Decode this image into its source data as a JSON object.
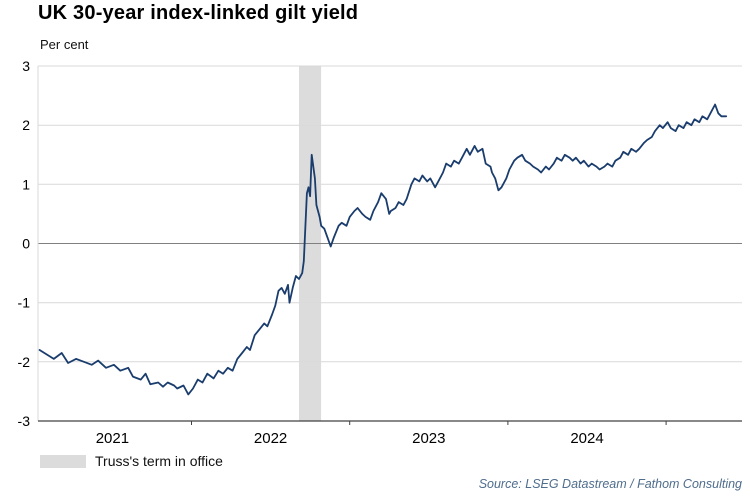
{
  "title": "UK 30-year index-linked gilt yield",
  "subtitle": "Per cent",
  "source": "Source: LSEG Datastream / Fathom Consulting",
  "colors": {
    "line": "#1a3d6d",
    "band": "#dcdcdc",
    "grid": "#d9d9d9",
    "zero_line": "#808080",
    "axis": "#404040",
    "text": "#000000",
    "source_text": "#4f6d8c"
  },
  "chart_data": {
    "type": "line",
    "title": "UK 30-year index-linked gilt yield",
    "ylabel": "Per cent",
    "xlabel": "",
    "ylim": [
      -3,
      3
    ],
    "yticks": [
      3,
      2,
      1,
      0,
      -1,
      -2,
      -3
    ],
    "xlim": [
      2021.03,
      2025.48
    ],
    "xticks": [
      {
        "label": "2021",
        "x": 2021.5
      },
      {
        "label": "2022",
        "x": 2022.5
      },
      {
        "label": "2023",
        "x": 2023.5
      },
      {
        "label": "2024",
        "x": 2024.5
      }
    ],
    "xtick_marks": [
      2022,
      2023,
      2024,
      2025
    ],
    "grid": "horizontal",
    "legend_position": "bottom-left",
    "band": {
      "label": "Truss's term in office",
      "x_start": 2022.68,
      "x_end": 2022.82
    },
    "series": [
      {
        "name": "UK 30-year index-linked gilt yield",
        "x": [
          2021.04,
          2021.13,
          2021.18,
          2021.22,
          2021.27,
          2021.32,
          2021.37,
          2021.41,
          2021.46,
          2021.51,
          2021.55,
          2021.6,
          2021.63,
          2021.68,
          2021.71,
          2021.74,
          2021.79,
          2021.82,
          2021.85,
          2021.89,
          2021.91,
          2021.95,
          2021.98,
          2022.01,
          2022.04,
          2022.07,
          2022.1,
          2022.14,
          2022.17,
          2022.2,
          2022.23,
          2022.26,
          2022.29,
          2022.32,
          2022.35,
          2022.37,
          2022.4,
          2022.43,
          2022.46,
          2022.48,
          2022.51,
          2022.53,
          2022.55,
          2022.57,
          2022.59,
          2022.61,
          2022.62,
          2022.64,
          2022.66,
          2022.68,
          2022.7,
          2022.71,
          2022.73,
          2022.74,
          2022.75,
          2022.76,
          2022.78,
          2022.79,
          2022.81,
          2022.82,
          2022.84,
          2022.86,
          2022.88,
          2022.9,
          2022.93,
          2022.95,
          2022.98,
          2023.0,
          2023.03,
          2023.05,
          2023.08,
          2023.1,
          2023.13,
          2023.15,
          2023.18,
          2023.2,
          2023.23,
          2023.25,
          2023.26,
          2023.29,
          2023.31,
          2023.34,
          2023.36,
          2023.39,
          2023.41,
          2023.44,
          2023.46,
          2023.49,
          2023.51,
          2023.54,
          2023.56,
          2023.59,
          2023.61,
          2023.64,
          2023.66,
          2023.69,
          2023.71,
          2023.74,
          2023.76,
          2023.79,
          2023.81,
          2023.84,
          2023.86,
          2023.89,
          2023.9,
          2023.92,
          2023.94,
          2023.96,
          2023.99,
          2024.01,
          2024.04,
          2024.06,
          2024.09,
          2024.11,
          2024.14,
          2024.16,
          2024.19,
          2024.21,
          2024.24,
          2024.26,
          2024.29,
          2024.31,
          2024.34,
          2024.36,
          2024.39,
          2024.41,
          2024.43,
          2024.46,
          2024.48,
          2024.51,
          2024.53,
          2024.56,
          2024.58,
          2024.61,
          2024.63,
          2024.66,
          2024.68,
          2024.71,
          2024.73,
          2024.76,
          2024.78,
          2024.81,
          2024.83,
          2024.86,
          2024.88,
          2024.91,
          2024.93,
          2024.96,
          2024.98,
          2025.01,
          2025.03,
          2025.06,
          2025.08,
          2025.11,
          2025.13,
          2025.16,
          2025.18,
          2025.21,
          2025.23,
          2025.26,
          2025.28,
          2025.31,
          2025.33,
          2025.35,
          2025.38
        ],
        "y": [
          -1.8,
          -1.95,
          -1.85,
          -2.02,
          -1.95,
          -2.0,
          -2.05,
          -1.98,
          -2.1,
          -2.05,
          -2.15,
          -2.1,
          -2.25,
          -2.3,
          -2.2,
          -2.38,
          -2.35,
          -2.42,
          -2.35,
          -2.4,
          -2.45,
          -2.4,
          -2.55,
          -2.45,
          -2.3,
          -2.35,
          -2.2,
          -2.28,
          -2.15,
          -2.2,
          -2.1,
          -2.15,
          -1.95,
          -1.85,
          -1.75,
          -1.8,
          -1.55,
          -1.45,
          -1.35,
          -1.4,
          -1.2,
          -1.05,
          -0.8,
          -0.75,
          -0.85,
          -0.7,
          -1.0,
          -0.75,
          -0.55,
          -0.6,
          -0.5,
          -0.3,
          0.85,
          0.95,
          0.8,
          1.5,
          1.1,
          0.65,
          0.45,
          0.3,
          0.25,
          0.1,
          -0.05,
          0.1,
          0.3,
          0.35,
          0.3,
          0.45,
          0.55,
          0.6,
          0.5,
          0.45,
          0.4,
          0.55,
          0.7,
          0.85,
          0.75,
          0.5,
          0.55,
          0.6,
          0.7,
          0.65,
          0.75,
          1.0,
          1.1,
          1.05,
          1.15,
          1.05,
          1.1,
          0.95,
          1.05,
          1.2,
          1.35,
          1.3,
          1.4,
          1.35,
          1.45,
          1.6,
          1.5,
          1.65,
          1.55,
          1.6,
          1.35,
          1.3,
          1.2,
          1.1,
          0.9,
          0.95,
          1.1,
          1.25,
          1.4,
          1.45,
          1.5,
          1.4,
          1.35,
          1.3,
          1.25,
          1.2,
          1.3,
          1.25,
          1.35,
          1.45,
          1.4,
          1.5,
          1.45,
          1.4,
          1.45,
          1.35,
          1.4,
          1.3,
          1.35,
          1.3,
          1.25,
          1.3,
          1.35,
          1.3,
          1.4,
          1.45,
          1.55,
          1.5,
          1.6,
          1.55,
          1.6,
          1.7,
          1.75,
          1.8,
          1.9,
          2.0,
          1.95,
          2.05,
          1.95,
          1.9,
          2.0,
          1.95,
          2.05,
          2.0,
          2.1,
          2.05,
          2.15,
          2.1,
          2.2,
          2.35,
          2.2,
          2.15,
          2.15
        ]
      }
    ],
    "source": "Source: LSEG Datastream / Fathom Consulting"
  }
}
